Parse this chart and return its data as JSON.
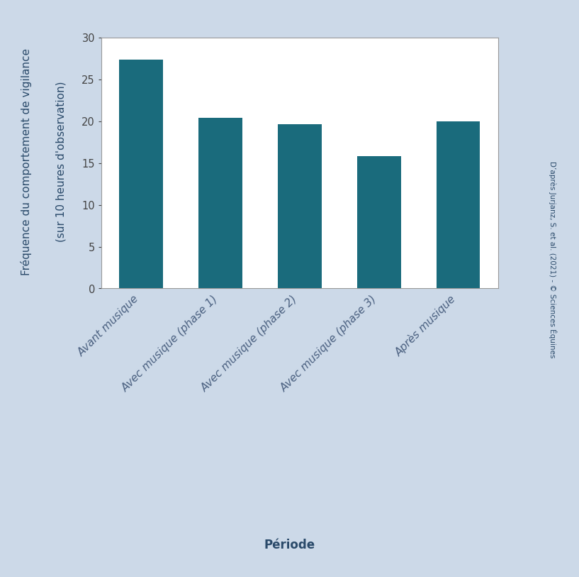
{
  "categories": [
    "Avant musique",
    "Avec musique (phase 1)",
    "Avec musique (phase 2)",
    "Avec musique (phase 3)",
    "Après musique"
  ],
  "values": [
    27.33,
    20.42,
    19.67,
    15.83,
    20.0
  ],
  "bar_color": "#1a6b7c",
  "background_color": "#ccd9e8",
  "plot_bg_color": "#ffffff",
  "ylabel_line1": "Fréquence du comportement de vigilance",
  "ylabel_line2": "(sur 10 heures d'observation)",
  "xlabel": "Période",
  "ylim": [
    0,
    30
  ],
  "yticks": [
    0,
    5,
    10,
    15,
    20,
    25,
    30
  ],
  "side_text": "D’après Jurjanz, S. et al. (2021) - © Sciences Équines",
  "label_fontsize": 11,
  "tick_fontsize": 10.5,
  "xtick_fontsize": 11,
  "bar_width": 0.55,
  "spine_color": "#999999",
  "ylabel_color": "#2a4a6a",
  "xlabel_color": "#2a4a6a",
  "ytick_color": "#444444",
  "xtick_color": "#4a6080"
}
